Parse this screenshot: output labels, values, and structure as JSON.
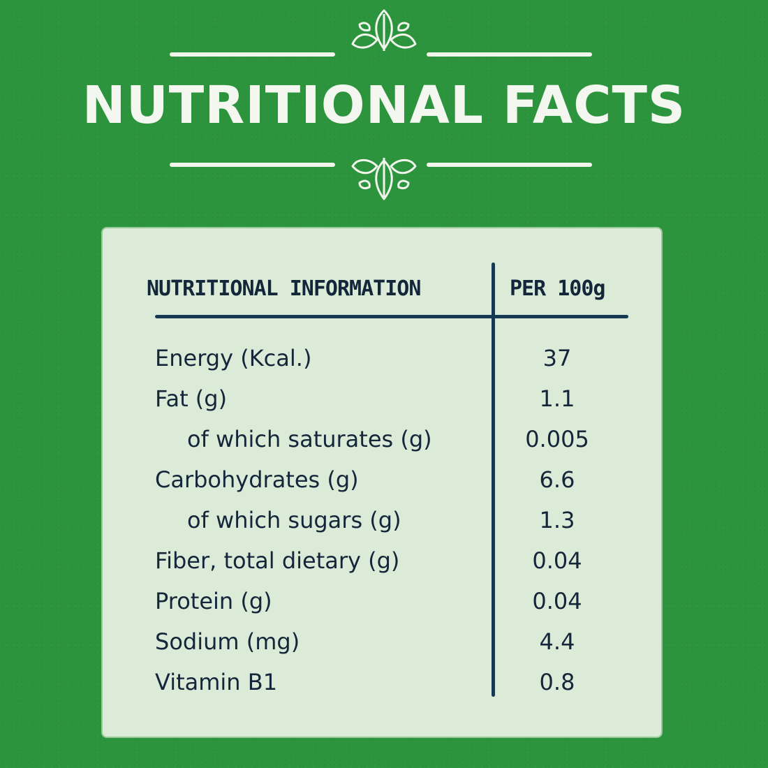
{
  "title": "NUTRITIONAL FACTS",
  "colors": {
    "background": "#2d943e",
    "card": "#dcebd8",
    "ink": "#14263a",
    "light": "#f4f7f0"
  },
  "icons": {
    "top_ornament": "leaf-sprig-icon",
    "bottom_ornament": "leaf-sprig-icon"
  },
  "table": {
    "header_left": "NUTRITIONAL INFORMATION",
    "header_right": "PER 100g",
    "rows": [
      {
        "label": "Energy (Kcal.)",
        "value": "37"
      },
      {
        "label": "Fat (g)",
        "value": "1.1"
      },
      {
        "label": "of which saturates (g)",
        "value": "0.005"
      },
      {
        "label": "Carbohydrates (g)",
        "value": "6.6"
      },
      {
        "label": "of which sugars (g)",
        "value": "1.3"
      },
      {
        "label": "Fiber, total dietary (g)",
        "value": "0.04"
      },
      {
        "label": "Protein (g)",
        "value": "0.04"
      },
      {
        "label": "Sodium (mg)",
        "value": "4.4"
      },
      {
        "label": "Vitamin B1",
        "value": "0.8"
      }
    ]
  }
}
